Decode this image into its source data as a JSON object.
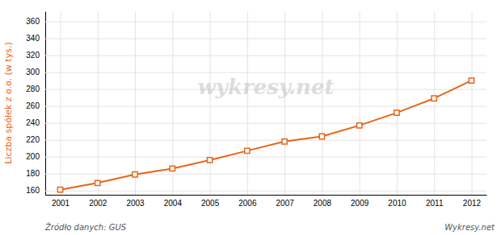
{
  "chart_data": {
    "type": "line",
    "x": [
      2001,
      2002,
      2003,
      2004,
      2005,
      2006,
      2007,
      2008,
      2009,
      2010,
      2011,
      2012
    ],
    "values": [
      161,
      169,
      179,
      186,
      196,
      207,
      218,
      224,
      237,
      252,
      269,
      290
    ],
    "color": "#E86418",
    "marker": "square",
    "y_label": "Liczba spółek z o.o. (w tys.)",
    "xlim": [
      2000.6,
      2012.4
    ],
    "xticks": [
      2001,
      2002,
      2003,
      2004,
      2005,
      2006,
      2007,
      2008,
      2009,
      2010,
      2011,
      2012
    ],
    "ylim": [
      155,
      372
    ],
    "yticks": [
      160,
      180,
      200,
      220,
      240,
      260,
      280,
      300,
      320,
      340,
      360
    ],
    "grid": true,
    "annotations": [
      "wykresy.net",
      "Źródło danych:  GUS",
      "Wykresy.net"
    ]
  }
}
